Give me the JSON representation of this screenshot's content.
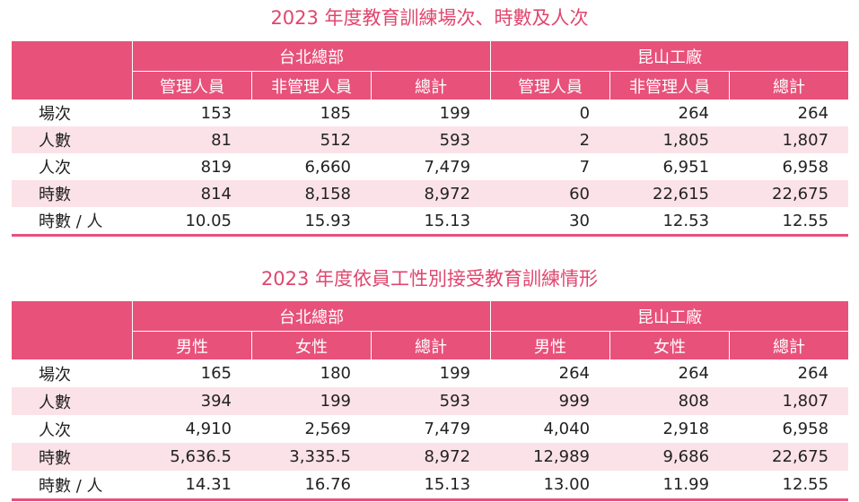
{
  "table1": {
    "title": "2023 年度教育訓練場次、時數及人次",
    "groups": [
      "台北總部",
      "昆山工廠"
    ],
    "columns": [
      "管理人員",
      "非管理人員",
      "總計",
      "管理人員",
      "非管理人員",
      "總計"
    ],
    "rows": [
      {
        "label": "場次",
        "cells": [
          "153",
          "185",
          "199",
          "0",
          "264",
          "264"
        ]
      },
      {
        "label": "人數",
        "cells": [
          "81",
          "512",
          "593",
          "2",
          "1,805",
          "1,807"
        ]
      },
      {
        "label": "人次",
        "cells": [
          "819",
          "6,660",
          "7,479",
          "7",
          "6,951",
          "6,958"
        ]
      },
      {
        "label": "時數",
        "cells": [
          "814",
          "8,158",
          "8,972",
          "60",
          "22,615",
          "22,675"
        ]
      },
      {
        "label": "時數 / 人",
        "cells": [
          "10.05",
          "15.93",
          "15.13",
          "30",
          "12.53",
          "12.55"
        ]
      }
    ]
  },
  "table2": {
    "title": "2023 年度依員工性別接受教育訓練情形",
    "groups": [
      "台北總部",
      "昆山工廠"
    ],
    "columns": [
      "男性",
      "女性",
      "總計",
      "男性",
      "女性",
      "總計"
    ],
    "rows": [
      {
        "label": "場次",
        "cells": [
          "165",
          "180",
          "199",
          "264",
          "264",
          "264"
        ]
      },
      {
        "label": "人數",
        "cells": [
          "394",
          "199",
          "593",
          "999",
          "808",
          "1,807"
        ]
      },
      {
        "label": "人次",
        "cells": [
          "4,910",
          "2,569",
          "7,479",
          "4,040",
          "2,918",
          "6,958"
        ]
      },
      {
        "label": "時數",
        "cells": [
          "5,636.5",
          "3,335.5",
          "8,972",
          "12,989",
          "9,686",
          "22,675"
        ]
      },
      {
        "label": "時數 / 人",
        "cells": [
          "14.31",
          "16.76",
          "15.13",
          "13.00",
          "11.99",
          "12.55"
        ]
      }
    ]
  },
  "colors": {
    "header": "#e8517a",
    "title": "#e0466e",
    "alt_row": "#fbe2e8"
  }
}
